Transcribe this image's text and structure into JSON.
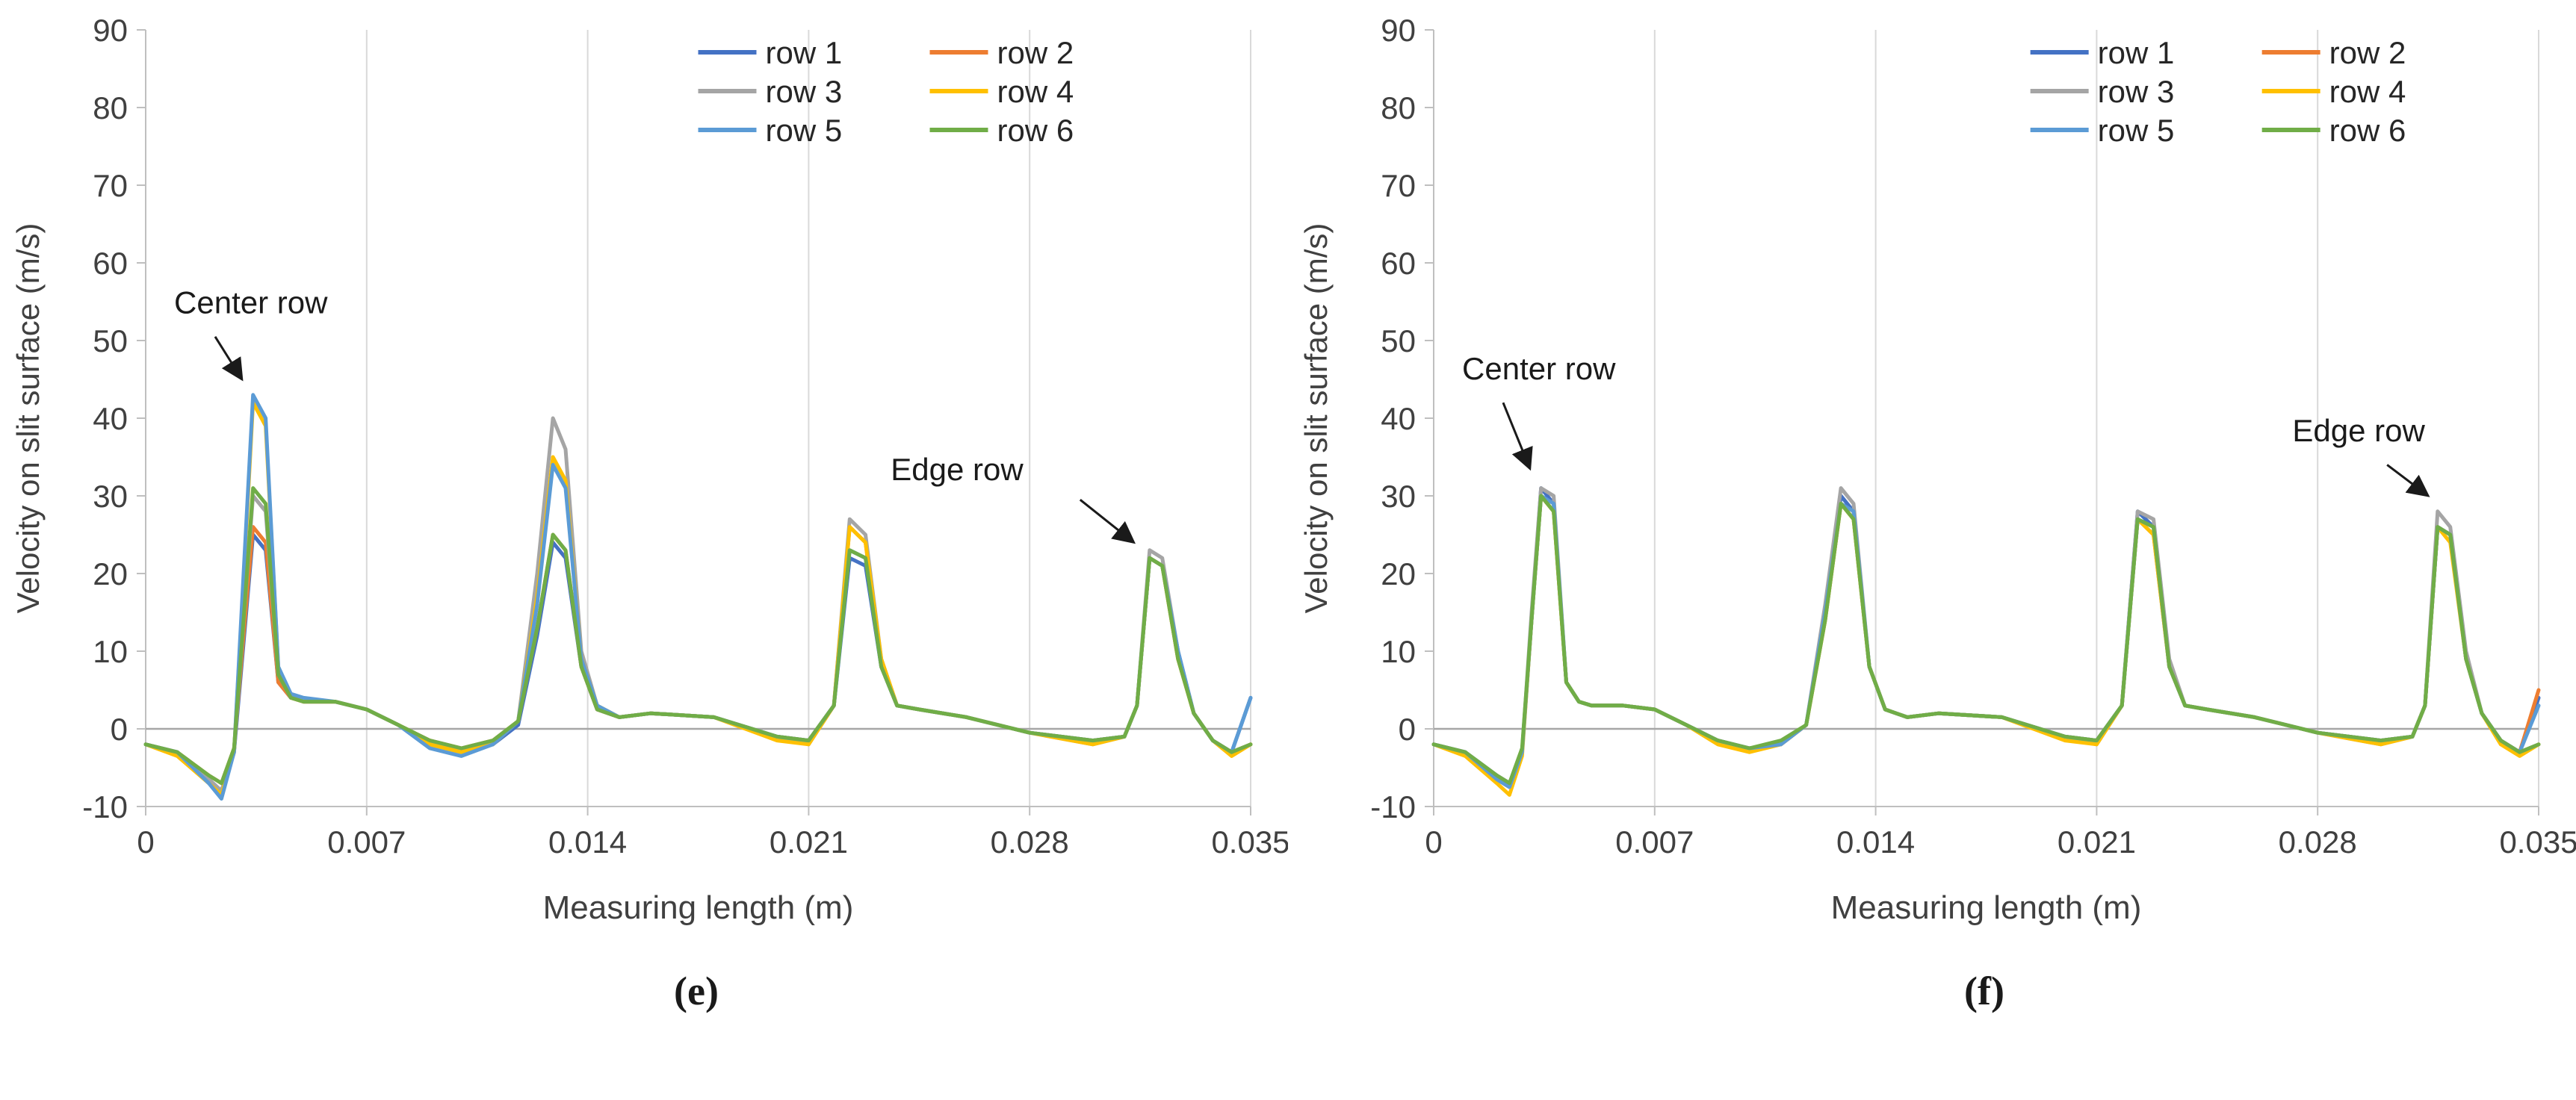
{
  "panels": [
    {
      "label": "(e)"
    },
    {
      "label": "(f)"
    }
  ],
  "style": {
    "grid_color": "#d9d9d9",
    "axis_color": "#bfbfbf",
    "zero_line_color": "#a6a6a6",
    "tick_label_color": "#404040",
    "axis_title_color": "#404040",
    "annotation_color": "#1a1a1a",
    "series_stroke_width": 5
  },
  "chart_data": [
    {
      "type": "line",
      "title": "",
      "xlabel": "Measuring length (m)",
      "ylabel": "Velocity on slit surface (m/s)",
      "xlim": [
        0,
        0.035
      ],
      "ylim": [
        -10,
        90
      ],
      "xticks": [
        0,
        0.007,
        0.014,
        0.021,
        0.028,
        0.035
      ],
      "xtick_labels": [
        "0",
        "0.007",
        "0.014",
        "0.021",
        "0.028",
        "0.035"
      ],
      "yticks": [
        -10,
        0,
        10,
        20,
        30,
        40,
        50,
        60,
        70,
        80,
        90
      ],
      "ytick_labels": [
        "-10",
        "0",
        "10",
        "20",
        "30",
        "40",
        "50",
        "60",
        "70",
        "80",
        "90"
      ],
      "grid": "vertical-only",
      "legend_position": "top-right",
      "legend_x_frac": 0.5,
      "x": [
        0,
        0.001,
        0.002,
        0.0024,
        0.0028,
        0.0031,
        0.0034,
        0.0038,
        0.0042,
        0.0046,
        0.005,
        0.006,
        0.007,
        0.008,
        0.009,
        0.01,
        0.011,
        0.0118,
        0.0124,
        0.0129,
        0.0133,
        0.0138,
        0.0143,
        0.015,
        0.016,
        0.018,
        0.02,
        0.021,
        0.0218,
        0.0223,
        0.0228,
        0.0233,
        0.0238,
        0.0245,
        0.026,
        0.028,
        0.03,
        0.031,
        0.0314,
        0.0318,
        0.0322,
        0.0327,
        0.0332,
        0.0338,
        0.0344,
        0.035
      ],
      "series": [
        {
          "name": "row 1",
          "color": "#4472C4",
          "y": [
            -2,
            -3,
            -6.5,
            -8,
            -3,
            11,
            25,
            23,
            6,
            4,
            3.5,
            3.5,
            2.5,
            0.5,
            -2,
            -3,
            -2,
            0.5,
            12,
            24,
            22,
            8,
            2.5,
            1.5,
            2,
            1.5,
            -1,
            -1.5,
            3,
            22,
            21,
            8,
            3,
            2.5,
            1.5,
            -0.5,
            -1.5,
            -1,
            3,
            22,
            21,
            10,
            2,
            -1.5,
            -3,
            4
          ]
        },
        {
          "name": "row 2",
          "color": "#ED7D31",
          "y": [
            -2,
            -3,
            -6,
            -7,
            -2.5,
            12,
            26,
            24,
            6,
            4,
            3.5,
            3.5,
            2.5,
            0.5,
            -1.5,
            -2.5,
            -1.5,
            1,
            13,
            25,
            23,
            8,
            2.5,
            1.5,
            2,
            1.5,
            -1,
            -1.5,
            3,
            26,
            24,
            8,
            3,
            2.5,
            1.5,
            -0.5,
            -1.5,
            -1,
            3,
            22,
            21,
            9,
            2,
            -1.5,
            -3,
            -2
          ]
        },
        {
          "name": "row 3",
          "color": "#A5A5A5",
          "y": [
            -2,
            -3,
            -6.5,
            -8,
            -3,
            14,
            30,
            28,
            7,
            4,
            3.5,
            3.5,
            2.5,
            0.5,
            -2,
            -3,
            -2,
            1,
            20,
            40,
            36,
            10,
            3,
            1.5,
            2,
            1.5,
            -1,
            -2,
            3,
            27,
            25,
            9,
            3,
            2.5,
            1.5,
            -0.5,
            -2,
            -1,
            3,
            23,
            22,
            10,
            2,
            -1.5,
            -3,
            -2
          ]
        },
        {
          "name": "row 4",
          "color": "#FFC000",
          "y": [
            -2,
            -3.5,
            -7,
            -8.5,
            -3,
            19,
            42,
            39,
            8,
            4,
            3.5,
            3.5,
            2.5,
            0.5,
            -2,
            -3,
            -2,
            1,
            17,
            35,
            32,
            9,
            3,
            1.5,
            2,
            1.5,
            -1.5,
            -2,
            3,
            26,
            24,
            9,
            3,
            2.5,
            1.5,
            -0.5,
            -2,
            -1,
            3,
            22,
            21,
            9,
            2,
            -1.5,
            -3.5,
            -2
          ]
        },
        {
          "name": "row 5",
          "color": "#5B9BD5",
          "y": [
            -2,
            -3,
            -7,
            -9,
            -3,
            20,
            43,
            40,
            8,
            4.5,
            4,
            3.5,
            2.5,
            0.5,
            -2.5,
            -3.5,
            -2,
            1,
            16,
            34,
            31,
            9,
            3,
            1.5,
            2,
            1.5,
            -1,
            -1.5,
            3,
            23,
            22,
            8,
            3,
            2.5,
            1.5,
            -0.5,
            -1.5,
            -1,
            3,
            22,
            21,
            10,
            2,
            -1.5,
            -3,
            4
          ]
        },
        {
          "name": "row 6",
          "color": "#70AD47",
          "y": [
            -2,
            -3,
            -6,
            -7,
            -2.5,
            14,
            31,
            29,
            7,
            4,
            3.5,
            3.5,
            2.5,
            0.5,
            -1.5,
            -2.5,
            -1.5,
            1,
            13,
            25,
            23,
            8,
            2.5,
            1.5,
            2,
            1.5,
            -1,
            -1.5,
            3,
            23,
            22,
            8,
            3,
            2.5,
            1.5,
            -0.5,
            -1.5,
            -1,
            3,
            22,
            21,
            9,
            2,
            -1.5,
            -3,
            -2
          ]
        }
      ],
      "annotations": [
        {
          "text": "Center row",
          "text_xy": [
            0.0009,
            53.5
          ],
          "arrow_from": [
            0.0022,
            50.5
          ],
          "arrow_to": [
            0.00305,
            45
          ]
        },
        {
          "text": "Edge row",
          "text_xy": [
            0.0236,
            32
          ],
          "arrow_from": [
            0.0296,
            29.5
          ],
          "arrow_to": [
            0.0313,
            24
          ]
        }
      ]
    },
    {
      "type": "line",
      "title": "",
      "xlabel": "Measuring length (m)",
      "ylabel": "Velocity on slit surface (m/s)",
      "xlim": [
        0,
        0.035
      ],
      "ylim": [
        -10,
        90
      ],
      "xticks": [
        0,
        0.007,
        0.014,
        0.021,
        0.028,
        0.035
      ],
      "xtick_labels": [
        "0",
        "0.007",
        "0.014",
        "0.021",
        "0.028",
        "0.035"
      ],
      "yticks": [
        -10,
        0,
        10,
        20,
        30,
        40,
        50,
        60,
        70,
        80,
        90
      ],
      "ytick_labels": [
        "-10",
        "0",
        "10",
        "20",
        "30",
        "40",
        "50",
        "60",
        "70",
        "80",
        "90"
      ],
      "grid": "vertical-only",
      "legend_position": "top-right",
      "legend_x_frac": 0.54,
      "x": [
        0,
        0.001,
        0.002,
        0.0024,
        0.0028,
        0.0031,
        0.0034,
        0.0038,
        0.0042,
        0.0046,
        0.005,
        0.006,
        0.007,
        0.008,
        0.009,
        0.01,
        0.011,
        0.0118,
        0.0124,
        0.0129,
        0.0133,
        0.0138,
        0.0143,
        0.015,
        0.016,
        0.018,
        0.02,
        0.021,
        0.0218,
        0.0223,
        0.0228,
        0.0233,
        0.0238,
        0.0245,
        0.026,
        0.028,
        0.03,
        0.031,
        0.0314,
        0.0318,
        0.0322,
        0.0327,
        0.0332,
        0.0338,
        0.0344,
        0.035
      ],
      "series": [
        {
          "name": "row 1",
          "color": "#4472C4",
          "y": [
            -2,
            -3,
            -6,
            -7,
            -3,
            14,
            31,
            29,
            6,
            3.5,
            3,
            3,
            2.5,
            0.5,
            -1.5,
            -2.5,
            -2,
            0.5,
            15,
            30,
            28,
            8,
            2.5,
            1.5,
            2,
            1.5,
            -1,
            -1.5,
            3,
            28,
            26,
            8,
            3,
            2.5,
            1.5,
            -0.5,
            -1.5,
            -1,
            3,
            26,
            25,
            9,
            2,
            -1.5,
            -3,
            4
          ]
        },
        {
          "name": "row 2",
          "color": "#ED7D31",
          "y": [
            -2,
            -3,
            -6.5,
            -7.5,
            -3,
            14,
            30,
            28,
            6,
            3.5,
            3,
            3,
            2.5,
            0.5,
            -1.5,
            -2.5,
            -2,
            0.5,
            14,
            29,
            27,
            8,
            2.5,
            1.5,
            2,
            1.5,
            -1,
            -1.5,
            3,
            27,
            25,
            8,
            3,
            2.5,
            1.5,
            -0.5,
            -1.5,
            -1,
            3,
            26,
            25,
            9,
            2,
            -1.5,
            -3,
            5
          ]
        },
        {
          "name": "row 3",
          "color": "#A5A5A5",
          "y": [
            -2,
            -3,
            -6,
            -7,
            -3,
            15,
            31,
            30,
            6,
            3.5,
            3,
            3,
            2.5,
            0.5,
            -1.5,
            -2.5,
            -2,
            0.5,
            16,
            31,
            29,
            8,
            2.5,
            1.5,
            2,
            1.5,
            -1,
            -2,
            3,
            28,
            27,
            9,
            3,
            2.5,
            1.5,
            -0.5,
            -2,
            -1,
            3,
            28,
            26,
            10,
            2,
            -1.5,
            -3,
            -2
          ]
        },
        {
          "name": "row 4",
          "color": "#FFC000",
          "y": [
            -2,
            -3.5,
            -7,
            -8.5,
            -3.5,
            14,
            30,
            28,
            6,
            3.5,
            3,
            3,
            2.5,
            0.5,
            -2,
            -3,
            -2,
            0.5,
            14,
            29,
            27,
            8,
            2.5,
            1.5,
            2,
            1.5,
            -1.5,
            -2,
            3,
            27,
            25,
            8,
            3,
            2.5,
            1.5,
            -0.5,
            -2,
            -1,
            3,
            26,
            24,
            9,
            2,
            -2,
            -3.5,
            -2
          ]
        },
        {
          "name": "row 5",
          "color": "#5B9BD5",
          "y": [
            -2,
            -3,
            -6.5,
            -7.5,
            -3,
            14,
            30,
            29,
            6,
            3.5,
            3,
            3,
            2.5,
            0.5,
            -1.5,
            -2.5,
            -2,
            0.5,
            15,
            29,
            28,
            8,
            2.5,
            1.5,
            2,
            1.5,
            -1,
            -1.5,
            3,
            27,
            26,
            8,
            3,
            2.5,
            1.5,
            -0.5,
            -1.5,
            -1,
            3,
            26,
            25,
            9,
            2,
            -1.5,
            -3,
            3
          ]
        },
        {
          "name": "row 6",
          "color": "#70AD47",
          "y": [
            -2,
            -3,
            -6,
            -7,
            -2.5,
            14,
            30,
            28,
            6,
            3.5,
            3,
            3,
            2.5,
            0.5,
            -1.5,
            -2.5,
            -1.5,
            0.5,
            14,
            29,
            27,
            8,
            2.5,
            1.5,
            2,
            1.5,
            -1,
            -1.5,
            3,
            27,
            26,
            8,
            3,
            2.5,
            1.5,
            -0.5,
            -1.5,
            -1,
            3,
            26,
            25,
            9,
            2,
            -1.5,
            -3,
            -2
          ]
        }
      ],
      "annotations": [
        {
          "text": "Center row",
          "text_xy": [
            0.0009,
            45
          ],
          "arrow_from": [
            0.0022,
            42
          ],
          "arrow_to": [
            0.00305,
            33.5
          ]
        },
        {
          "text": "Edge row",
          "text_xy": [
            0.0272,
            37
          ],
          "arrow_from": [
            0.0302,
            34
          ],
          "arrow_to": [
            0.0315,
            30
          ]
        }
      ]
    }
  ]
}
